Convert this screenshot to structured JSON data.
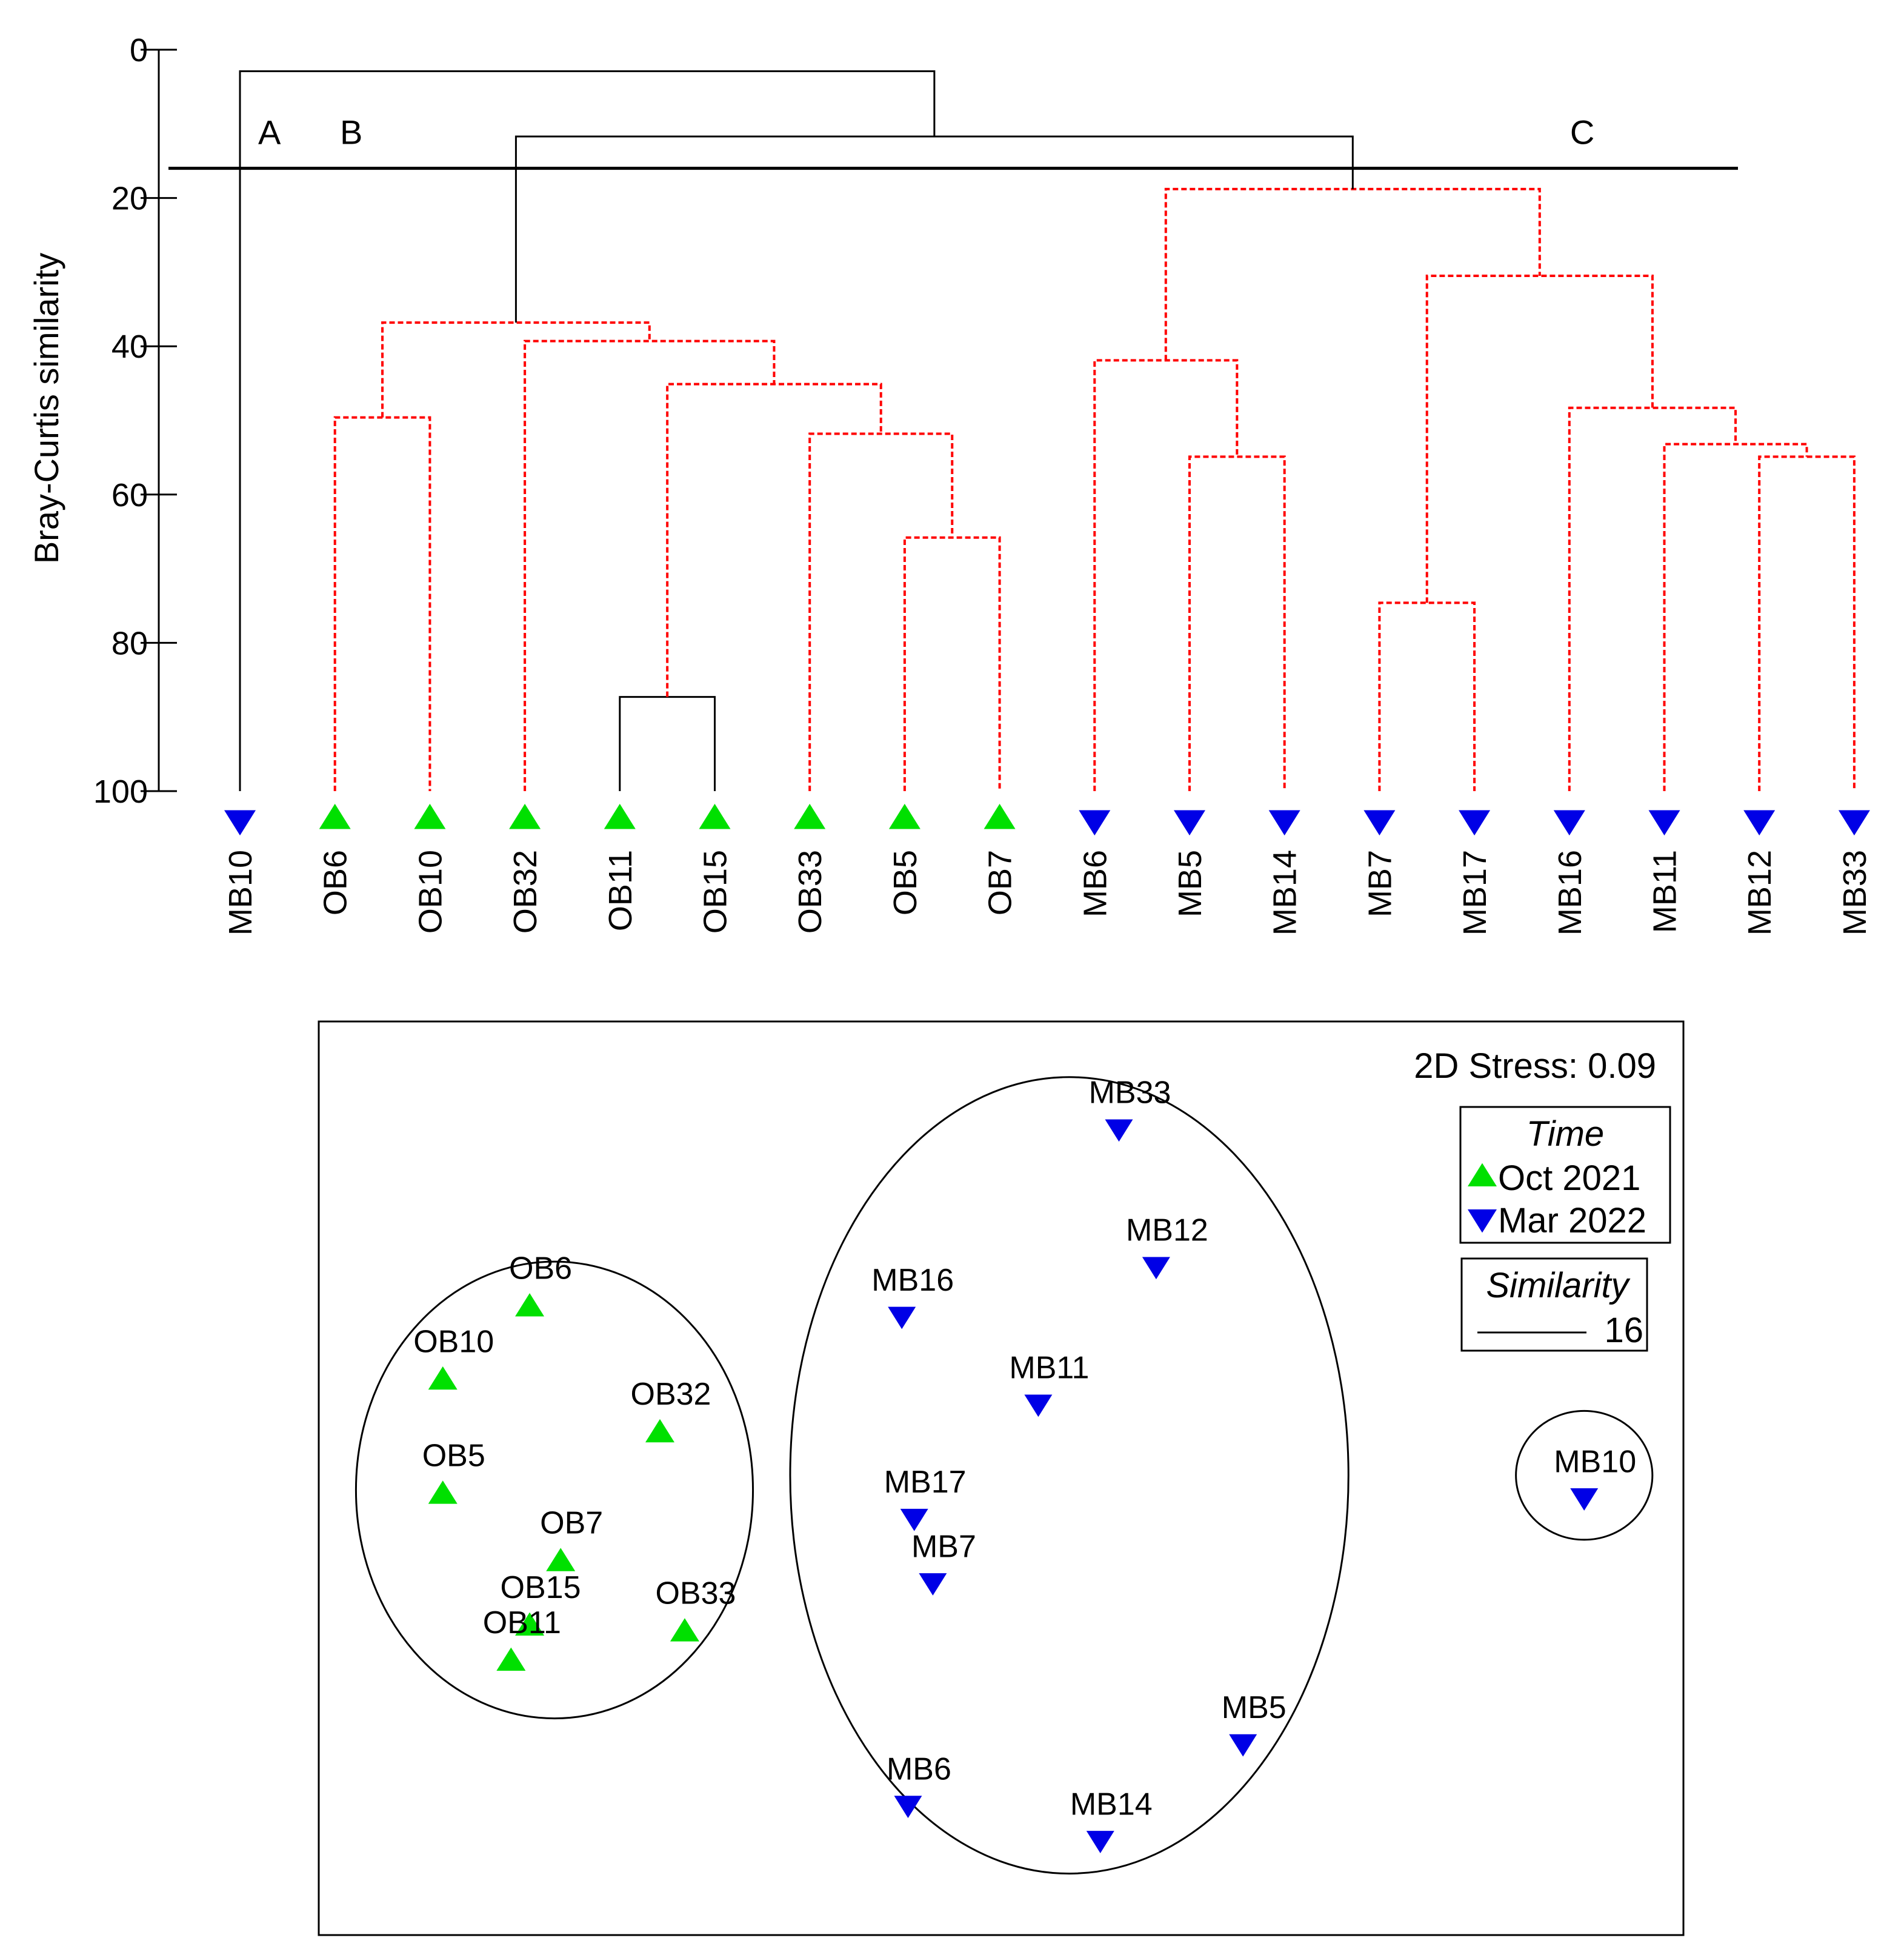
{
  "colors": {
    "oct": "#00e000",
    "mar": "#0000e6",
    "sig": "#ff0000",
    "line": "#000000"
  },
  "chart_data": [
    {
      "type": "dendrogram",
      "ylabel": "Bray-Curtis similarity",
      "ylim": [
        0,
        100
      ],
      "y_ticks": [
        "0",
        "20",
        "40",
        "60",
        "80",
        "100"
      ],
      "y_tick_values": [
        0,
        20,
        40,
        60,
        80,
        100
      ],
      "cut_similarity": 16,
      "leaves": [
        {
          "name": "MB10",
          "time": "mar"
        },
        {
          "name": "OB6",
          "time": "oct"
        },
        {
          "name": "OB10",
          "time": "oct"
        },
        {
          "name": "OB32",
          "time": "oct"
        },
        {
          "name": "OB11",
          "time": "oct"
        },
        {
          "name": "OB15",
          "time": "oct"
        },
        {
          "name": "OB33",
          "time": "oct"
        },
        {
          "name": "OB5",
          "time": "oct"
        },
        {
          "name": "OB7",
          "time": "oct"
        },
        {
          "name": "MB6",
          "time": "mar"
        },
        {
          "name": "MB5",
          "time": "mar"
        },
        {
          "name": "MB14",
          "time": "mar"
        },
        {
          "name": "MB7",
          "time": "mar"
        },
        {
          "name": "MB17",
          "time": "mar"
        },
        {
          "name": "MB16",
          "time": "mar"
        },
        {
          "name": "MB11",
          "time": "mar"
        },
        {
          "name": "MB12",
          "time": "mar"
        },
        {
          "name": "MB33",
          "time": "mar"
        }
      ],
      "merges": [
        {
          "id": "m1",
          "left": "OB11",
          "right": "OB15",
          "similarity": 87.3,
          "significant": false
        },
        {
          "id": "m2",
          "left": "OB6",
          "right": "OB10",
          "similarity": 49.6,
          "significant": true
        },
        {
          "id": "m3",
          "left": "OB5",
          "right": "OB7",
          "similarity": 65.8,
          "significant": true
        },
        {
          "id": "m4",
          "left": "OB33",
          "right": "m3",
          "similarity": 51.8,
          "significant": true
        },
        {
          "id": "m5",
          "left": "m1",
          "right": "m4",
          "similarity": 45.1,
          "significant": true
        },
        {
          "id": "m6",
          "left": "OB32",
          "right": "m5",
          "similarity": 39.3,
          "significant": true
        },
        {
          "id": "m7",
          "left": "m2",
          "right": "m6",
          "similarity": 36.8,
          "significant": true
        },
        {
          "id": "m8",
          "left": "MB5",
          "right": "MB14",
          "similarity": 54.9,
          "significant": true
        },
        {
          "id": "m9",
          "left": "MB6",
          "right": "m8",
          "similarity": 41.9,
          "significant": true
        },
        {
          "id": "m10",
          "left": "MB7",
          "right": "MB17",
          "similarity": 74.6,
          "significant": true
        },
        {
          "id": "m11",
          "left": "MB12",
          "right": "MB33",
          "similarity": 54.9,
          "significant": true
        },
        {
          "id": "m12",
          "left": "MB11",
          "right": "m11",
          "similarity": 53.2,
          "significant": true
        },
        {
          "id": "m13",
          "left": "MB16",
          "right": "m12",
          "similarity": 48.3,
          "significant": true
        },
        {
          "id": "m14",
          "left": "m10",
          "right": "m13",
          "similarity": 30.5,
          "significant": true
        },
        {
          "id": "m15",
          "left": "m9",
          "right": "m14",
          "similarity": 18.8,
          "significant": true
        },
        {
          "id": "m16",
          "left": "m7",
          "right": "m15",
          "similarity": 11.7,
          "significant": false
        },
        {
          "id": "m17",
          "left": "MB10",
          "right": "m16",
          "similarity": 2.9,
          "significant": false
        }
      ],
      "group_labels": [
        {
          "text": "A",
          "cluster": "MB10"
        },
        {
          "text": "B",
          "cluster": "m7"
        },
        {
          "text": "C",
          "cluster": "m15"
        }
      ]
    },
    {
      "type": "scatter",
      "title": "2D Stress: 0.09",
      "points": [
        {
          "label": "OB6",
          "x": -0.88,
          "y": 0.78,
          "time": "oct"
        },
        {
          "label": "OB10",
          "x": -1.02,
          "y": 0.53,
          "time": "oct"
        },
        {
          "label": "OB32",
          "x": -0.67,
          "y": 0.35,
          "time": "oct"
        },
        {
          "label": "OB5",
          "x": -1.02,
          "y": 0.14,
          "time": "oct"
        },
        {
          "label": "OB7",
          "x": -0.83,
          "y": -0.09,
          "time": "oct"
        },
        {
          "label": "OB15",
          "x": -0.88,
          "y": -0.31,
          "time": "oct"
        },
        {
          "label": "OB11",
          "x": -0.91,
          "y": -0.43,
          "time": "oct"
        },
        {
          "label": "OB33",
          "x": -0.63,
          "y": -0.33,
          "time": "oct"
        },
        {
          "label": "MB33",
          "x": 0.07,
          "y": 1.38,
          "time": "mar"
        },
        {
          "label": "MB12",
          "x": 0.13,
          "y": 0.91,
          "time": "mar"
        },
        {
          "label": "MB16",
          "x": -0.28,
          "y": 0.74,
          "time": "mar"
        },
        {
          "label": "MB11",
          "x": -0.06,
          "y": 0.44,
          "time": "mar"
        },
        {
          "label": "MB17",
          "x": -0.26,
          "y": 0.05,
          "time": "mar"
        },
        {
          "label": "MB7",
          "x": -0.23,
          "y": -0.17,
          "time": "mar"
        },
        {
          "label": "MB6",
          "x": -0.27,
          "y": -0.93,
          "time": "mar"
        },
        {
          "label": "MB14",
          "x": 0.04,
          "y": -1.05,
          "time": "mar"
        },
        {
          "label": "MB5",
          "x": 0.27,
          "y": -0.72,
          "time": "mar"
        },
        {
          "label": "MB10",
          "x": 0.82,
          "y": 0.12,
          "time": "mar"
        }
      ],
      "xlim": [
        -1.22,
        0.98
      ],
      "ylim": [
        -1.37,
        1.75
      ],
      "similarity_contours": [
        {
          "members": [
            "OB6",
            "OB10",
            "OB32",
            "OB5",
            "OB7",
            "OB15",
            "OB11",
            "OB33"
          ],
          "cx": -0.84,
          "cy": 0.15,
          "rx": 0.32,
          "ry": 0.78
        },
        {
          "members": [
            "MB33",
            "MB12",
            "MB16",
            "MB11",
            "MB17",
            "MB7",
            "MB6",
            "MB14",
            "MB5"
          ],
          "cx": -0.01,
          "cy": 0.2,
          "rx": 0.45,
          "ry": 1.36
        },
        {
          "members": [
            "MB10"
          ],
          "cx": 0.82,
          "cy": 0.2,
          "rx": 0.11,
          "ry": 0.22
        }
      ],
      "legend": {
        "time_title": "Time",
        "time_entries": [
          {
            "label": "Oct 2021",
            "time": "oct"
          },
          {
            "label": "Mar 2022",
            "time": "mar"
          }
        ],
        "similarity_title": "Similarity",
        "similarity_value": "16",
        "placement": "top-right"
      }
    }
  ]
}
